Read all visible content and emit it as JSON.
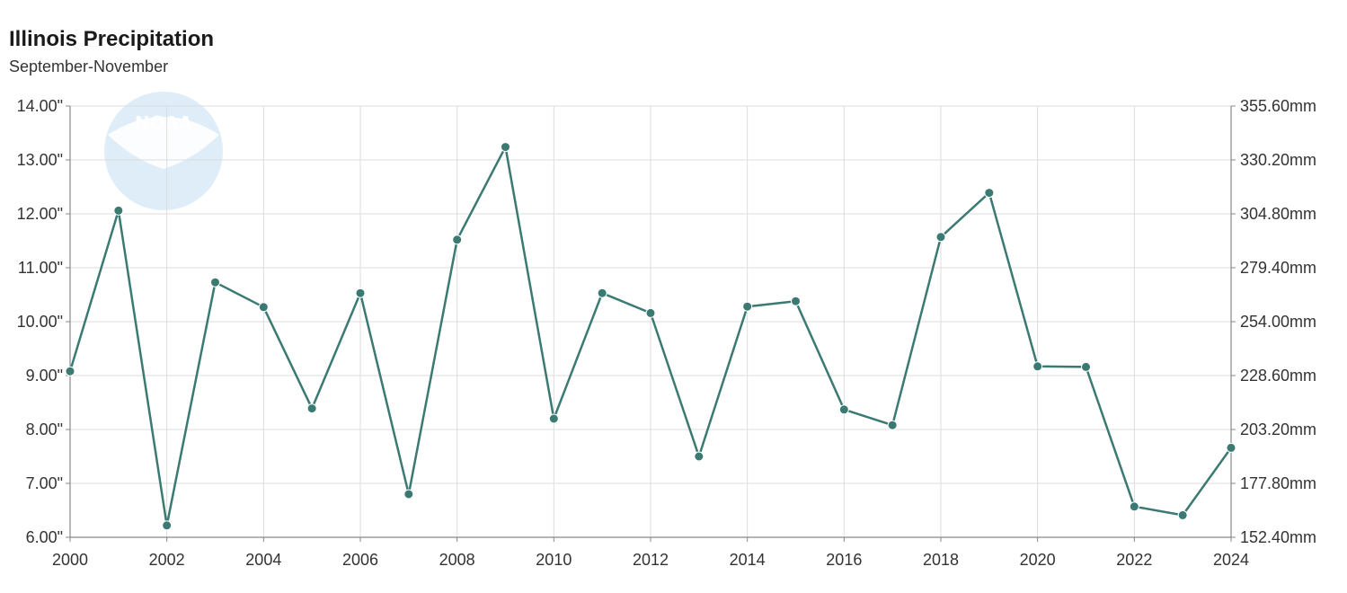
{
  "chart_data": {
    "type": "line",
    "title": "Illinois Precipitation",
    "subtitle": "September-November",
    "x": [
      2000,
      2001,
      2002,
      2003,
      2004,
      2005,
      2006,
      2007,
      2008,
      2009,
      2010,
      2011,
      2012,
      2013,
      2014,
      2015,
      2016,
      2017,
      2018,
      2019,
      2020,
      2021,
      2022,
      2023,
      2024
    ],
    "series": [
      {
        "values": [
          9.08,
          12.06,
          6.22,
          10.73,
          10.27,
          8.39,
          10.53,
          6.8,
          11.52,
          13.24,
          8.2,
          10.53,
          10.16,
          7.5,
          10.28,
          10.38,
          8.37,
          8.08,
          11.57,
          12.39,
          9.17,
          9.16,
          6.57,
          6.41,
          7.66
        ]
      }
    ],
    "x_ticks": [
      "2000",
      "2002",
      "2004",
      "2006",
      "2008",
      "2010",
      "2012",
      "2014",
      "2016",
      "2018",
      "2020",
      "2022",
      "2024"
    ],
    "y_ticks_left": [
      "6.00\"",
      "7.00\"",
      "8.00\"",
      "9.00\"",
      "10.00\"",
      "11.00\"",
      "12.00\"",
      "13.00\"",
      "14.00\""
    ],
    "y_ticks_right": [
      "152.40mm",
      "177.80mm",
      "203.20mm",
      "228.60mm",
      "254.00mm",
      "279.40mm",
      "304.80mm",
      "330.20mm",
      "355.60mm"
    ],
    "xlim": [
      2000,
      2024
    ],
    "ylim": [
      6,
      14
    ],
    "grid": true,
    "colors": {
      "line": "#3b7a72",
      "grid": "#dddddd",
      "axis": "#888888"
    },
    "watermark": "NOAA"
  }
}
